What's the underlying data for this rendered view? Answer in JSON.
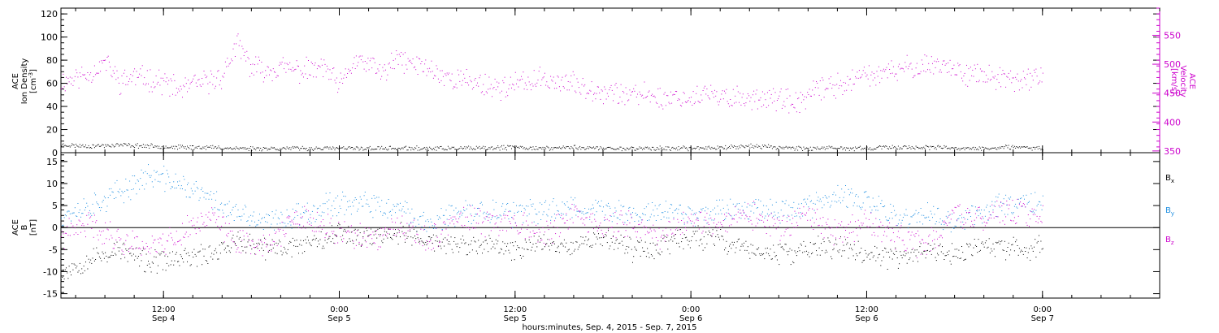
{
  "colors": {
    "black": "#000000",
    "magenta": "#cc00cc",
    "blue": "#1a8ce0",
    "frame": "#000000"
  },
  "chart_data": [
    {
      "type": "scatter",
      "panel": "top",
      "left_axis": {
        "label_lines": [
          "ACE",
          "Ion Density"
        ],
        "units": "[cm",
        "units_sup": "-3",
        "units_end": "]",
        "range": [
          0,
          125
        ],
        "ticks": [
          "0",
          "20",
          "40",
          "60",
          "80",
          "100",
          "120"
        ]
      },
      "right_axis": {
        "label_lines": [
          "ACE",
          "Velocity"
        ],
        "units": "[km/s]",
        "range": [
          347,
          597
        ],
        "ticks": [
          "350",
          "400",
          "450",
          "500",
          "550"
        ]
      },
      "x": {
        "start": "2015-09-04 05:00",
        "end": "2015-09-07 08:00"
      },
      "series": [
        {
          "axis": "left",
          "color": "black",
          "points": [
            [
              "2015-09-04 05:00",
              7
            ],
            [
              "2015-09-04 07:00",
              6
            ],
            [
              "2015-09-04 09:00",
              7
            ],
            [
              "2015-09-04 11:00",
              6
            ],
            [
              "2015-09-04 13:00",
              5
            ],
            [
              "2015-09-04 15:00",
              5
            ],
            [
              "2015-09-04 17:00",
              4
            ],
            [
              "2015-09-04 19:00",
              4
            ],
            [
              "2015-09-04 21:00",
              4
            ],
            [
              "2015-09-05 00:00",
              4
            ],
            [
              "2015-09-05 02:00",
              4
            ],
            [
              "2015-09-05 04:00",
              4
            ],
            [
              "2015-09-05 06:00",
              4
            ],
            [
              "2015-09-05 08:00",
              4
            ],
            [
              "2015-09-05 10:00",
              4
            ],
            [
              "2015-09-05 12:00",
              5
            ],
            [
              "2015-09-05 14:00",
              4
            ],
            [
              "2015-09-05 16:00",
              5
            ],
            [
              "2015-09-05 18:00",
              4
            ],
            [
              "2015-09-05 20:00",
              4
            ],
            [
              "2015-09-05 22:00",
              4
            ],
            [
              "2015-09-06 00:00",
              4
            ],
            [
              "2015-09-06 02:00",
              5
            ],
            [
              "2015-09-06 04:00",
              6
            ],
            [
              "2015-09-06 06:00",
              5
            ],
            [
              "2015-09-06 08:00",
              4
            ],
            [
              "2015-09-06 10:00",
              4
            ],
            [
              "2015-09-06 12:00",
              4
            ],
            [
              "2015-09-06 14:00",
              5
            ],
            [
              "2015-09-06 16:00",
              5
            ],
            [
              "2015-09-06 18:00",
              4
            ],
            [
              "2015-09-06 20:00",
              4
            ],
            [
              "2015-09-06 22:00",
              5
            ],
            [
              "2015-09-07 00:00",
              4
            ]
          ]
        },
        {
          "axis": "right",
          "color": "magenta",
          "points": [
            [
              "2015-09-04 05:00",
              470
            ],
            [
              "2015-09-04 07:00",
              485
            ],
            [
              "2015-09-04 08:00",
              505
            ],
            [
              "2015-09-04 09:00",
              470
            ],
            [
              "2015-09-04 10:00",
              480
            ],
            [
              "2015-09-04 11:00",
              475
            ],
            [
              "2015-09-04 12:00",
              470
            ],
            [
              "2015-09-04 13:00",
              455
            ],
            [
              "2015-09-04 14:00",
              465
            ],
            [
              "2015-09-04 15:00",
              470
            ],
            [
              "2015-09-04 16:00",
              480
            ],
            [
              "2015-09-04 17:00",
              535
            ],
            [
              "2015-09-04 18:00",
              495
            ],
            [
              "2015-09-04 19:00",
              490
            ],
            [
              "2015-09-04 20:00",
              495
            ],
            [
              "2015-09-04 21:00",
              490
            ],
            [
              "2015-09-04 22:00",
              490
            ],
            [
              "2015-09-04 23:00",
              495
            ],
            [
              "2015-09-05 00:00",
              460
            ],
            [
              "2015-09-05 01:00",
              505
            ],
            [
              "2015-09-05 02:00",
              500
            ],
            [
              "2015-09-05 03:00",
              485
            ],
            [
              "2015-09-05 04:00",
              510
            ],
            [
              "2015-09-05 05:00",
              500
            ],
            [
              "2015-09-05 06:00",
              495
            ],
            [
              "2015-09-05 07:00",
              480
            ],
            [
              "2015-09-05 08:00",
              475
            ],
            [
              "2015-09-05 09:00",
              470
            ],
            [
              "2015-09-05 10:00",
              465
            ],
            [
              "2015-09-05 11:00",
              460
            ],
            [
              "2015-09-05 12:00",
              465
            ],
            [
              "2015-09-05 13:00",
              470
            ],
            [
              "2015-09-05 14:00",
              475
            ],
            [
              "2015-09-05 15:00",
              470
            ],
            [
              "2015-09-05 16:00",
              465
            ],
            [
              "2015-09-05 17:00",
              460
            ],
            [
              "2015-09-05 18:00",
              455
            ],
            [
              "2015-09-05 19:00",
              450
            ],
            [
              "2015-09-05 20:00",
              445
            ],
            [
              "2015-09-05 21:00",
              450
            ],
            [
              "2015-09-05 22:00",
              440
            ],
            [
              "2015-09-05 23:00",
              445
            ],
            [
              "2015-09-06 00:00",
              440
            ],
            [
              "2015-09-06 01:00",
              450
            ],
            [
              "2015-09-06 02:00",
              440
            ],
            [
              "2015-09-06 03:00",
              445
            ],
            [
              "2015-09-06 04:00",
              440
            ],
            [
              "2015-09-06 05:00",
              445
            ],
            [
              "2015-09-06 06:00",
              440
            ],
            [
              "2015-09-06 07:00",
              430
            ],
            [
              "2015-09-06 08:00",
              445
            ],
            [
              "2015-09-06 09:00",
              460
            ],
            [
              "2015-09-06 10:00",
              465
            ],
            [
              "2015-09-06 11:00",
              470
            ],
            [
              "2015-09-06 12:00",
              485
            ],
            [
              "2015-09-06 13:00",
              480
            ],
            [
              "2015-09-06 14:00",
              490
            ],
            [
              "2015-09-06 15:00",
              495
            ],
            [
              "2015-09-06 16:00",
              500
            ],
            [
              "2015-09-06 17:00",
              500
            ],
            [
              "2015-09-06 18:00",
              490
            ],
            [
              "2015-09-06 19:00",
              485
            ],
            [
              "2015-09-06 20:00",
              480
            ],
            [
              "2015-09-06 21:00",
              475
            ],
            [
              "2015-09-06 22:00",
              470
            ],
            [
              "2015-09-06 23:00",
              475
            ],
            [
              "2015-09-07 00:00",
              480
            ]
          ]
        }
      ]
    },
    {
      "type": "scatter",
      "panel": "bottom",
      "left_axis": {
        "label_lines": [
          "ACE",
          "B"
        ],
        "units": "[nT]",
        "range": [
          -16,
          17
        ],
        "ticks": [
          "-15",
          "-10",
          "-5",
          "0",
          "5",
          "10",
          "15"
        ]
      },
      "x": {
        "start": "2015-09-04 05:00",
        "end": "2015-09-07 08:00"
      },
      "legend": [
        {
          "main": "B",
          "sub": "x",
          "color": "black"
        },
        {
          "main": "B",
          "sub": "y",
          "color": "blue"
        },
        {
          "main": "B",
          "sub": "z",
          "color": "magenta"
        }
      ],
      "series": [
        {
          "name": "Bx",
          "color": "black",
          "points": [
            [
              "2015-09-04 05:00",
              -10
            ],
            [
              "2015-09-04 07:00",
              -7
            ],
            [
              "2015-09-04 09:00",
              -5
            ],
            [
              "2015-09-04 11:00",
              -8
            ],
            [
              "2015-09-04 13:00",
              -7
            ],
            [
              "2015-09-04 15:00",
              -6
            ],
            [
              "2015-09-04 17:00",
              -3
            ],
            [
              "2015-09-04 19:00",
              -5
            ],
            [
              "2015-09-04 21:00",
              -4
            ],
            [
              "2015-09-05 00:00",
              -1
            ],
            [
              "2015-09-05 02:00",
              -2
            ],
            [
              "2015-09-05 04:00",
              -1
            ],
            [
              "2015-09-05 06:00",
              -3
            ],
            [
              "2015-09-05 08:00",
              -4
            ],
            [
              "2015-09-05 10:00",
              -4
            ],
            [
              "2015-09-05 12:00",
              -5
            ],
            [
              "2015-09-05 14:00",
              -3
            ],
            [
              "2015-09-05 16:00",
              -4
            ],
            [
              "2015-09-05 18:00",
              -2
            ],
            [
              "2015-09-05 20:00",
              -5
            ],
            [
              "2015-09-05 22:00",
              -4
            ],
            [
              "2015-09-06 00:00",
              -2
            ],
            [
              "2015-09-06 02:00",
              -3
            ],
            [
              "2015-09-06 04:00",
              -5
            ],
            [
              "2015-09-06 06:00",
              -6
            ],
            [
              "2015-09-06 08:00",
              -5
            ],
            [
              "2015-09-06 10:00",
              -4
            ],
            [
              "2015-09-06 12:00",
              -6
            ],
            [
              "2015-09-06 14:00",
              -7
            ],
            [
              "2015-09-06 16:00",
              -5
            ],
            [
              "2015-09-06 18:00",
              -6
            ],
            [
              "2015-09-06 20:00",
              -4
            ],
            [
              "2015-09-06 22:00",
              -5
            ],
            [
              "2015-09-07 00:00",
              -4
            ]
          ]
        },
        {
          "name": "By",
          "color": "blue",
          "points": [
            [
              "2015-09-04 05:00",
              3
            ],
            [
              "2015-09-04 07:00",
              5
            ],
            [
              "2015-09-04 09:00",
              8
            ],
            [
              "2015-09-04 11:00",
              12
            ],
            [
              "2015-09-04 13:00",
              10
            ],
            [
              "2015-09-04 15:00",
              7
            ],
            [
              "2015-09-04 17:00",
              3
            ],
            [
              "2015-09-04 19:00",
              1
            ],
            [
              "2015-09-04 21:00",
              3
            ],
            [
              "2015-09-05 00:00",
              6
            ],
            [
              "2015-09-05 02:00",
              5
            ],
            [
              "2015-09-05 04:00",
              4
            ],
            [
              "2015-09-05 06:00",
              1
            ],
            [
              "2015-09-05 08:00",
              3
            ],
            [
              "2015-09-05 10:00",
              4
            ],
            [
              "2015-09-05 12:00",
              3
            ],
            [
              "2015-09-05 14:00",
              4
            ],
            [
              "2015-09-05 16:00",
              5
            ],
            [
              "2015-09-05 18:00",
              4
            ],
            [
              "2015-09-05 20:00",
              3
            ],
            [
              "2015-09-05 22:00",
              4
            ],
            [
              "2015-09-06 00:00",
              3
            ],
            [
              "2015-09-06 02:00",
              4
            ],
            [
              "2015-09-06 04:00",
              5
            ],
            [
              "2015-09-06 06:00",
              4
            ],
            [
              "2015-09-06 08:00",
              5
            ],
            [
              "2015-09-06 10:00",
              7
            ],
            [
              "2015-09-06 12:00",
              6
            ],
            [
              "2015-09-06 14:00",
              2
            ],
            [
              "2015-09-06 16:00",
              3
            ],
            [
              "2015-09-06 18:00",
              1
            ],
            [
              "2015-09-06 20:00",
              4
            ],
            [
              "2015-09-06 22:00",
              6
            ],
            [
              "2015-09-07 00:00",
              6
            ]
          ]
        },
        {
          "name": "Bz",
          "color": "magenta",
          "points": [
            [
              "2015-09-04 05:00",
              -2
            ],
            [
              "2015-09-04 07:00",
              1
            ],
            [
              "2015-09-04 09:00",
              -3
            ],
            [
              "2015-09-04 11:00",
              -4
            ],
            [
              "2015-09-04 13:00",
              -2
            ],
            [
              "2015-09-04 15:00",
              3
            ],
            [
              "2015-09-04 17:00",
              -3
            ],
            [
              "2015-09-04 19:00",
              -4
            ],
            [
              "2015-09-04 21:00",
              2
            ],
            [
              "2015-09-05 00:00",
              -1
            ],
            [
              "2015-09-05 02:00",
              -3
            ],
            [
              "2015-09-05 04:00",
              0
            ],
            [
              "2015-09-05 06:00",
              -3
            ],
            [
              "2015-09-05 08:00",
              2
            ],
            [
              "2015-09-05 10:00",
              1
            ],
            [
              "2015-09-05 12:00",
              2
            ],
            [
              "2015-09-05 14:00",
              -2
            ],
            [
              "2015-09-05 16:00",
              3
            ],
            [
              "2015-09-05 18:00",
              0
            ],
            [
              "2015-09-05 20:00",
              1
            ],
            [
              "2015-09-05 22:00",
              -2
            ],
            [
              "2015-09-06 00:00",
              2
            ],
            [
              "2015-09-06 02:00",
              1
            ],
            [
              "2015-09-06 04:00",
              3
            ],
            [
              "2015-09-06 06:00",
              0
            ],
            [
              "2015-09-06 08:00",
              2
            ],
            [
              "2015-09-06 10:00",
              -1
            ],
            [
              "2015-09-06 12:00",
              1
            ],
            [
              "2015-09-06 14:00",
              -2
            ],
            [
              "2015-09-06 16:00",
              -4
            ],
            [
              "2015-09-06 18:00",
              3
            ],
            [
              "2015-09-06 20:00",
              2
            ],
            [
              "2015-09-06 22:00",
              4
            ],
            [
              "2015-09-07 00:00",
              3
            ]
          ]
        }
      ]
    }
  ],
  "x_axis": {
    "ticks": [
      {
        "time": "2015-09-04 12:00",
        "label": "12:00",
        "date": "Sep 4"
      },
      {
        "time": "2015-09-05 00:00",
        "label": "0:00",
        "date": "Sep 5"
      },
      {
        "time": "2015-09-05 12:00",
        "label": "12:00",
        "date": "Sep 5"
      },
      {
        "time": "2015-09-06 00:00",
        "label": "0:00",
        "date": "Sep 6"
      },
      {
        "time": "2015-09-06 12:00",
        "label": "12:00",
        "date": "Sep 6"
      },
      {
        "time": "2015-09-07 00:00",
        "label": "0:00",
        "date": "Sep 7"
      }
    ],
    "title": "hours:minutes, Sep.  4, 2015 - Sep.  7, 2015"
  }
}
